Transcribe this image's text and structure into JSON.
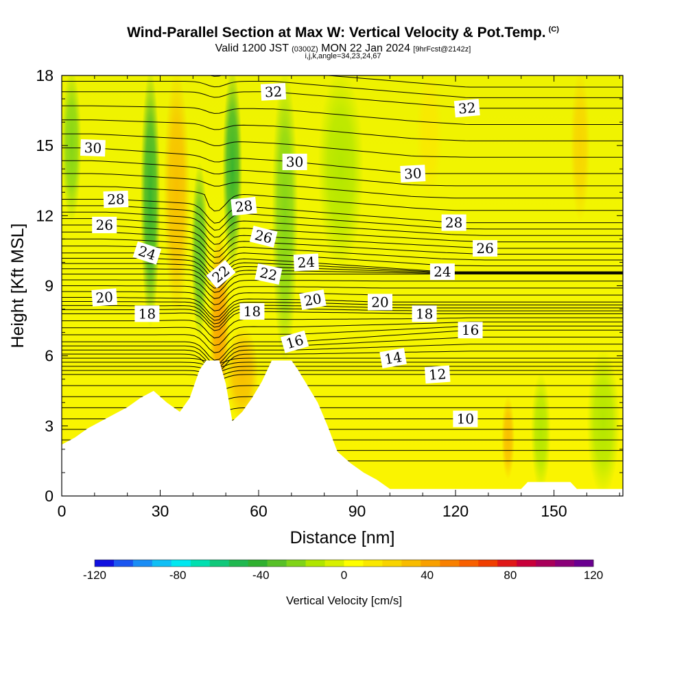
{
  "header": {
    "title": "Wind-Parallel Section at Max W: Vertical Velocity & Pot.Temp.",
    "title_mark": "(C)",
    "valid_prefix": "Valid 1200 JST",
    "valid_utc": "(0300Z)",
    "valid_date": "MON 22 Jan 2024",
    "forecast": "[9hrFcst@2142z]",
    "indices": "i,j,k,angle=34,23,24,67"
  },
  "chart_data": {
    "type": "heatmap",
    "description_fields": "vertical velocity (color fill) with potential temperature contours (labels)",
    "xlabel": "Distance [nm]",
    "ylabel": "Height [Kft MSL]",
    "xlim": [
      0,
      171
    ],
    "ylim": [
      0,
      18
    ],
    "x_ticks": [
      0,
      30,
      60,
      90,
      120,
      150
    ],
    "y_ticks": [
      0,
      3,
      6,
      9,
      12,
      15,
      18
    ],
    "terrain": [
      {
        "x": 0,
        "h": 2.2
      },
      {
        "x": 4,
        "h": 2.5
      },
      {
        "x": 8,
        "h": 2.9
      },
      {
        "x": 12,
        "h": 3.2
      },
      {
        "x": 16,
        "h": 3.5
      },
      {
        "x": 20,
        "h": 3.8
      },
      {
        "x": 24,
        "h": 4.2
      },
      {
        "x": 28,
        "h": 4.5
      },
      {
        "x": 32,
        "h": 4.0
      },
      {
        "x": 36,
        "h": 3.6
      },
      {
        "x": 39,
        "h": 4.2
      },
      {
        "x": 42,
        "h": 5.4
      },
      {
        "x": 44,
        "h": 5.8
      },
      {
        "x": 48,
        "h": 5.8
      },
      {
        "x": 50,
        "h": 4.8
      },
      {
        "x": 52,
        "h": 3.2
      },
      {
        "x": 55,
        "h": 3.6
      },
      {
        "x": 58,
        "h": 4.2
      },
      {
        "x": 61,
        "h": 4.9
      },
      {
        "x": 64,
        "h": 5.8
      },
      {
        "x": 70,
        "h": 5.8
      },
      {
        "x": 72,
        "h": 5.4
      },
      {
        "x": 75,
        "h": 4.7
      },
      {
        "x": 78,
        "h": 4.0
      },
      {
        "x": 81,
        "h": 3.0
      },
      {
        "x": 84,
        "h": 1.9
      },
      {
        "x": 88,
        "h": 1.4
      },
      {
        "x": 92,
        "h": 1.0
      },
      {
        "x": 96,
        "h": 0.7
      },
      {
        "x": 100,
        "h": 0.3
      },
      {
        "x": 115,
        "h": 0.3
      },
      {
        "x": 140,
        "h": 0.3
      },
      {
        "x": 142,
        "h": 0.6
      },
      {
        "x": 155,
        "h": 0.6
      },
      {
        "x": 157,
        "h": 0.3
      },
      {
        "x": 171,
        "h": 0.3
      }
    ],
    "theta_contour_labels": [
      {
        "label": "32",
        "x": 64.5,
        "y": 17.3,
        "angle": -3
      },
      {
        "label": "32",
        "x": 123.5,
        "y": 16.6,
        "angle": -5
      },
      {
        "label": "30",
        "x": 9.5,
        "y": 14.9,
        "angle": 2
      },
      {
        "label": "30",
        "x": 71,
        "y": 14.3,
        "angle": 0
      },
      {
        "label": "30",
        "x": 107,
        "y": 13.8,
        "angle": -3
      },
      {
        "label": "28",
        "x": 16.5,
        "y": 12.7,
        "angle": -2
      },
      {
        "label": "28",
        "x": 55.5,
        "y": 12.4,
        "angle": -6
      },
      {
        "label": "28",
        "x": 119.5,
        "y": 11.7,
        "angle": 0
      },
      {
        "label": "26",
        "x": 13,
        "y": 11.6,
        "angle": 0
      },
      {
        "label": "26",
        "x": 61.5,
        "y": 11.1,
        "angle": 14
      },
      {
        "label": "26",
        "x": 129,
        "y": 10.6,
        "angle": 0
      },
      {
        "label": "24",
        "x": 26,
        "y": 10.4,
        "angle": 18
      },
      {
        "label": "24",
        "x": 74.5,
        "y": 10.0,
        "angle": -3
      },
      {
        "label": "24",
        "x": 116,
        "y": 9.6,
        "angle": 0
      },
      {
        "label": "22",
        "x": 48.5,
        "y": 9.5,
        "angle": -40
      },
      {
        "label": "22",
        "x": 63,
        "y": 9.5,
        "angle": 12
      },
      {
        "label": "20",
        "x": 13,
        "y": 8.5,
        "angle": -4
      },
      {
        "label": "20",
        "x": 76.5,
        "y": 8.4,
        "angle": -10
      },
      {
        "label": "20",
        "x": 97,
        "y": 8.3,
        "angle": 0
      },
      {
        "label": "18",
        "x": 26,
        "y": 7.8,
        "angle": 0
      },
      {
        "label": "18",
        "x": 58,
        "y": 7.9,
        "angle": 0
      },
      {
        "label": "18",
        "x": 110.5,
        "y": 7.8,
        "angle": 0
      },
      {
        "label": "16",
        "x": 71,
        "y": 6.6,
        "angle": -16
      },
      {
        "label": "16",
        "x": 124.5,
        "y": 7.1,
        "angle": 0
      },
      {
        "label": "14",
        "x": 101,
        "y": 5.9,
        "angle": -10
      },
      {
        "label": "12",
        "x": 114.5,
        "y": 5.2,
        "angle": -4
      },
      {
        "label": "10",
        "x": 123,
        "y": 3.3,
        "angle": 0
      }
    ],
    "velocity_features": [
      {
        "kind": "sink",
        "x": 27,
        "w": 3,
        "ymin": 7.5,
        "ymax": 18,
        "value": -40
      },
      {
        "kind": "rise",
        "x": 35,
        "w": 4,
        "ymin": 8,
        "ymax": 18,
        "value": 30
      },
      {
        "kind": "sink",
        "x": 42,
        "w": 2.5,
        "ymin": 7,
        "ymax": 14,
        "value": -30
      },
      {
        "kind": "sink",
        "x": 52,
        "w": 3,
        "ymin": 10,
        "ymax": 18,
        "value": -45
      },
      {
        "kind": "rise",
        "x": 48,
        "w": 3,
        "ymin": 4,
        "ymax": 11,
        "value": 40
      },
      {
        "kind": "rise",
        "x": 55,
        "w": 5,
        "ymin": 3.5,
        "ymax": 7,
        "value": 30
      },
      {
        "kind": "sink",
        "x": 68,
        "w": 4,
        "ymin": 6,
        "ymax": 18,
        "value": -20
      },
      {
        "kind": "sink",
        "x": 3,
        "w": 3,
        "ymin": 12,
        "ymax": 18,
        "value": -20
      },
      {
        "kind": "sink",
        "x": 85,
        "w": 7,
        "ymin": 10,
        "ymax": 18,
        "value": -12
      },
      {
        "kind": "rise",
        "x": 112,
        "w": 4,
        "ymin": 13,
        "ymax": 18,
        "value": 15
      },
      {
        "kind": "rise",
        "x": 158,
        "w": 3,
        "ymin": 12,
        "ymax": 18,
        "value": 25
      },
      {
        "kind": "rise",
        "x": 136,
        "w": 2,
        "ymin": 1,
        "ymax": 4,
        "value": 30
      },
      {
        "kind": "sink",
        "x": 146,
        "w": 3,
        "ymin": 0.5,
        "ymax": 5,
        "value": -15
      },
      {
        "kind": "sink",
        "x": 165,
        "w": 5,
        "ymin": 0.3,
        "ymax": 6,
        "value": -12
      }
    ]
  },
  "colorbar": {
    "title": "Vertical Velocity [cm/s]",
    "tick_labels": [
      "-120",
      "-80",
      "-40",
      "0",
      "40",
      "80",
      "120"
    ],
    "range": [
      -120,
      120
    ],
    "colors": [
      "#1010e0",
      "#1a55f0",
      "#1a8df5",
      "#10bff5",
      "#00e8f0",
      "#00dfb0",
      "#10c87a",
      "#20b850",
      "#30b030",
      "#58c028",
      "#80d418",
      "#b0e600",
      "#d8f000",
      "#ffff00",
      "#fae800",
      "#f8d400",
      "#f8bc00",
      "#f8a000",
      "#f88000",
      "#f86000",
      "#f03e00",
      "#e01818",
      "#c8003a",
      "#a8005a",
      "#8a0078",
      "#6a0090"
    ]
  }
}
